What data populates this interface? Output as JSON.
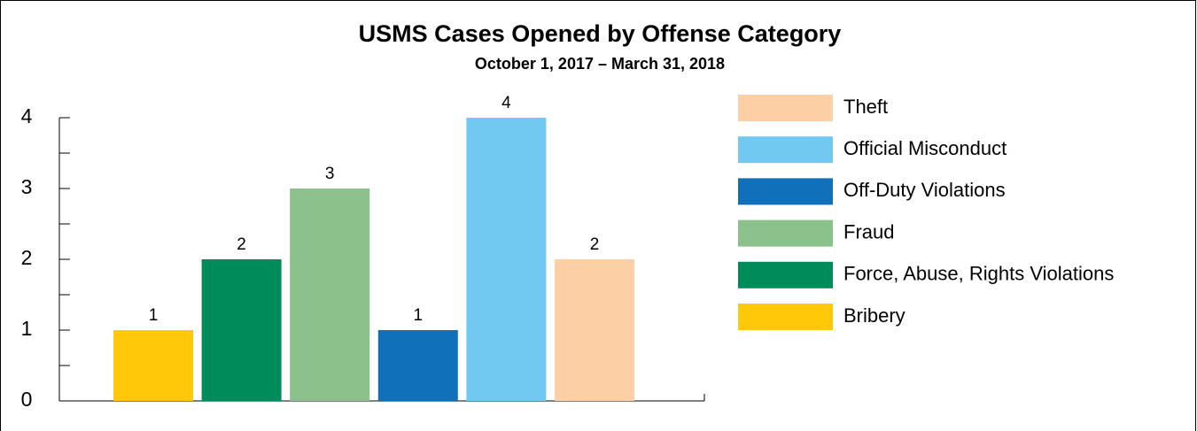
{
  "chart_data": {
    "type": "bar",
    "title": "USMS Cases Opened by Offense Category",
    "subtitle": "October 1, 2017 – March 31, 2018",
    "categories": [
      "Bribery",
      "Force, Abuse, Rights Violations",
      "Fraud",
      "Off-Duty Violations",
      "Official Misconduct",
      "Theft"
    ],
    "values": [
      1,
      2,
      3,
      1,
      4,
      2
    ],
    "colors": [
      "#ffc90a",
      "#008c5a",
      "#8bc28c",
      "#1170ba",
      "#71c8f0",
      "#fdcfa4"
    ],
    "ylim": [
      0,
      4
    ],
    "yticks": [
      0,
      1,
      2,
      3,
      4
    ],
    "legend": "right"
  }
}
